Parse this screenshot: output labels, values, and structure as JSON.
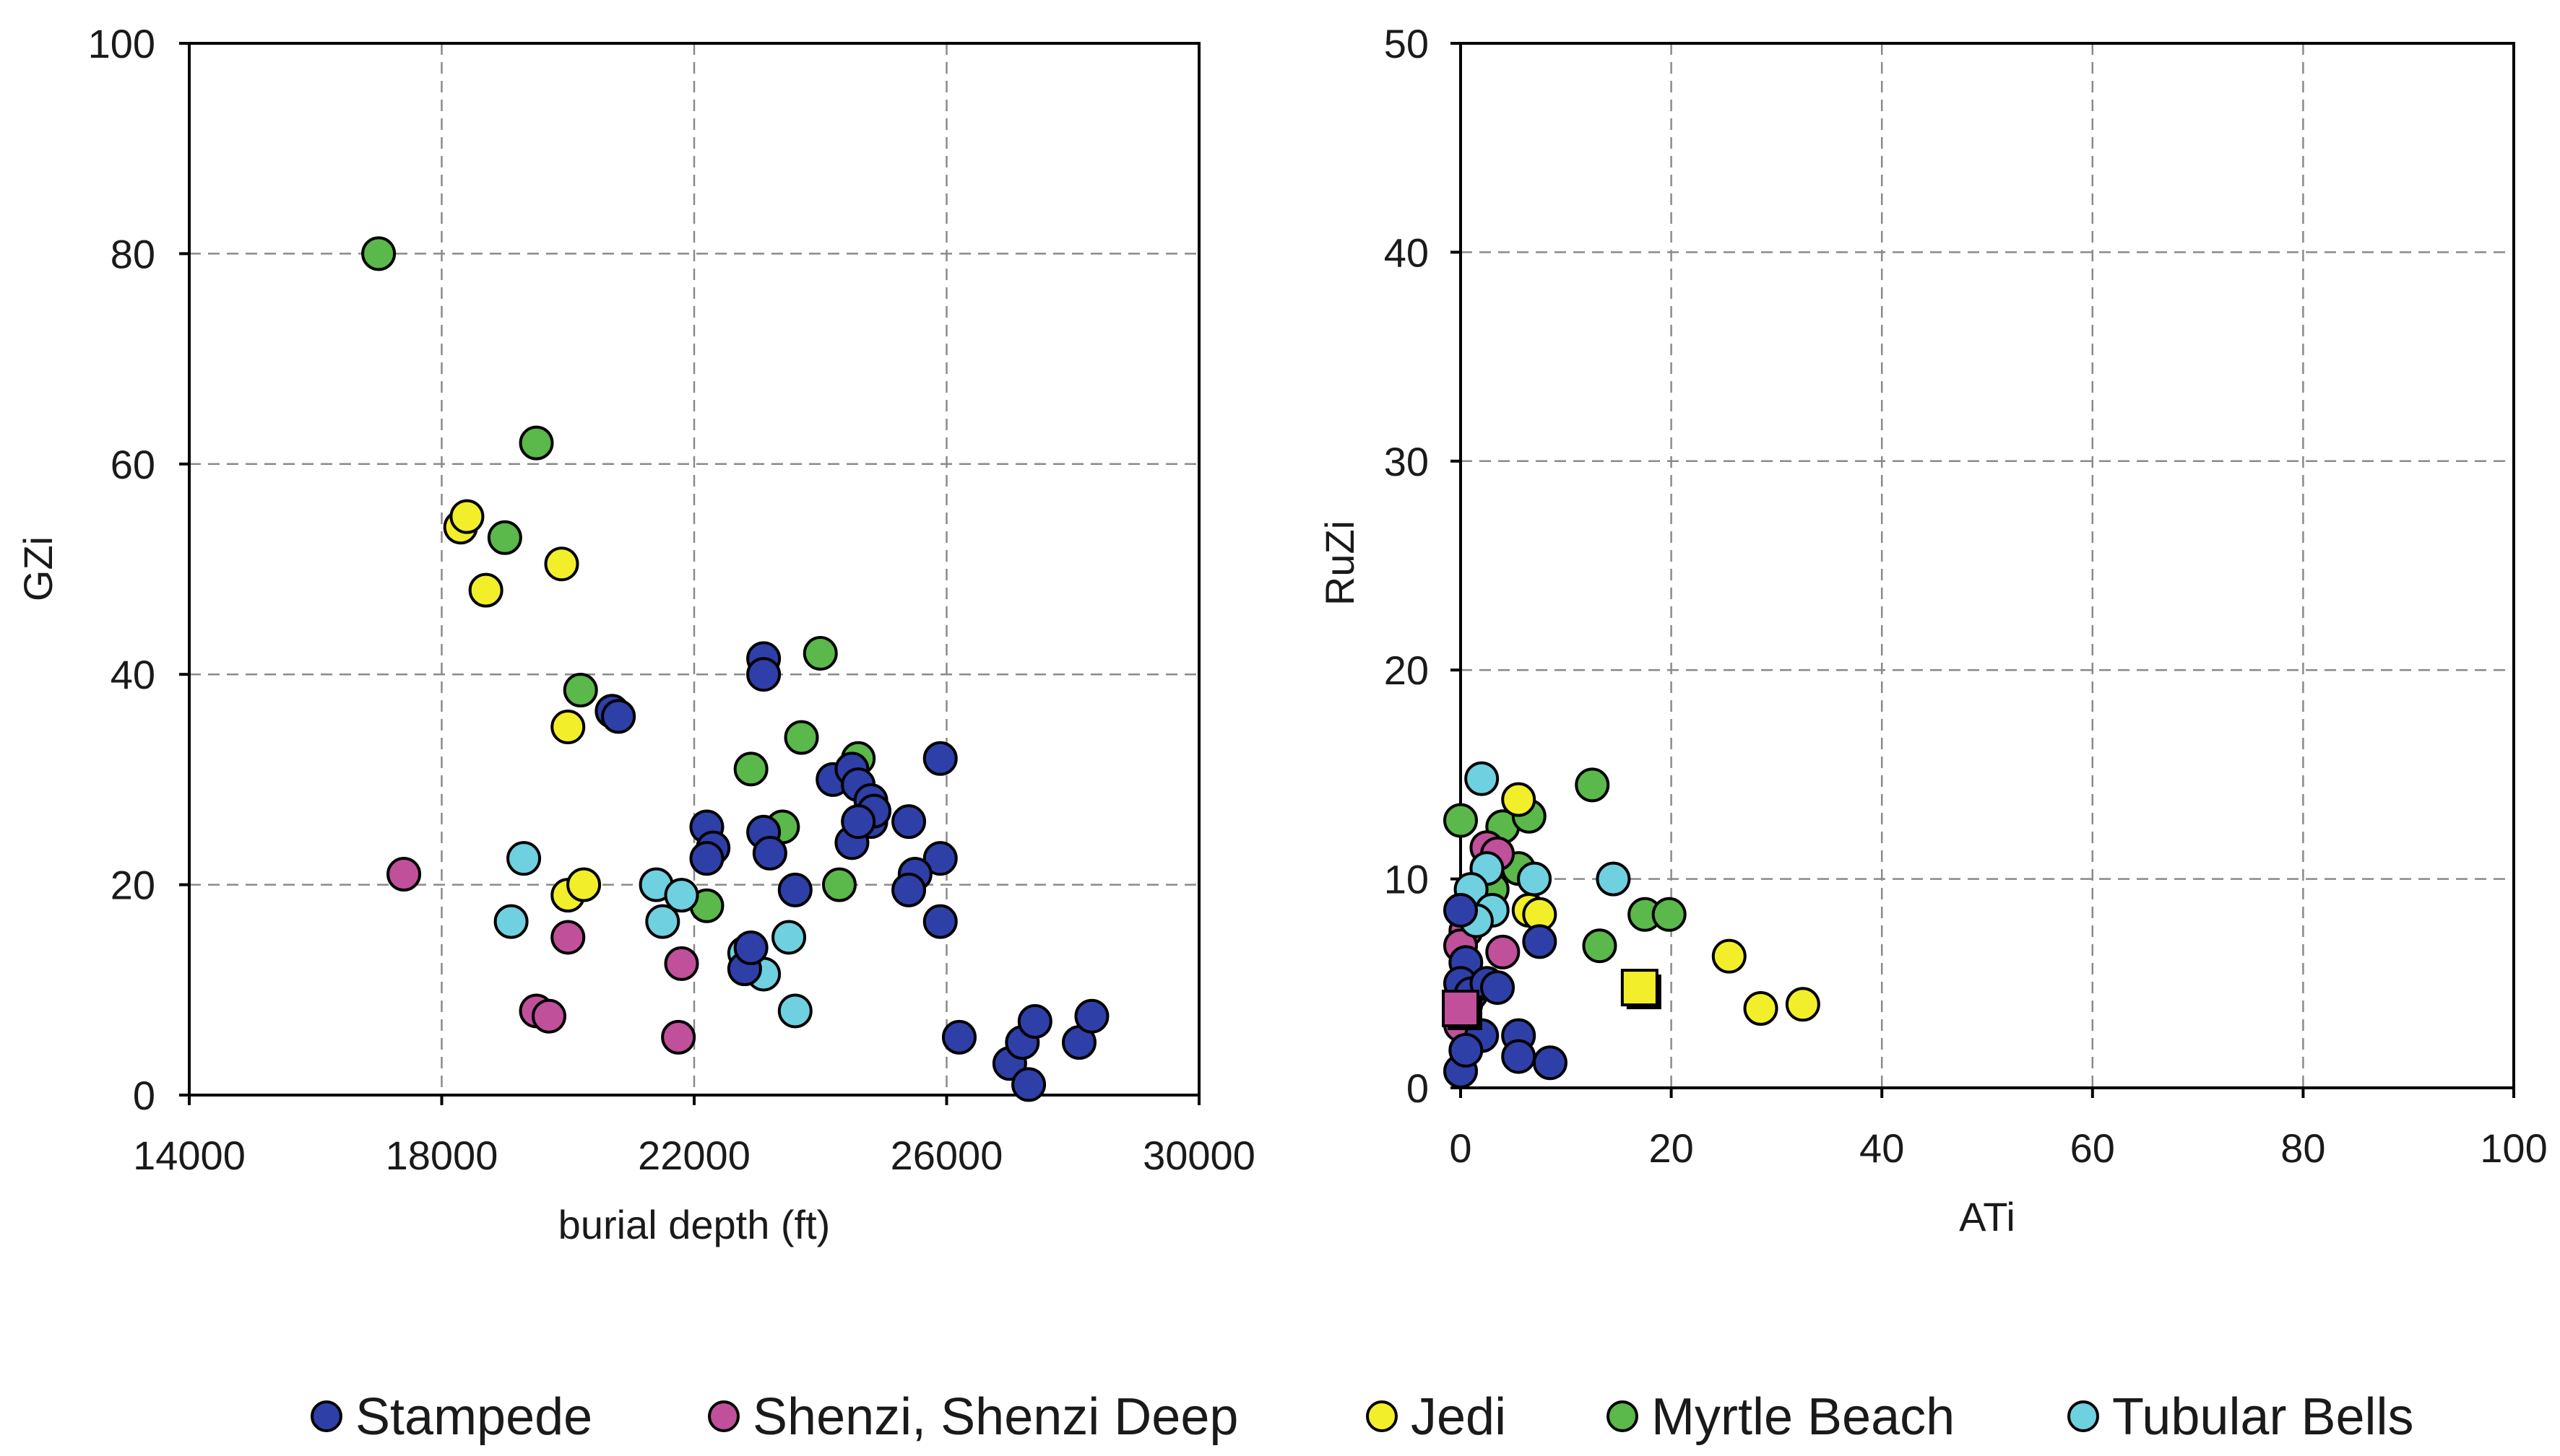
{
  "colors": {
    "Stampede": "#2f3fa8",
    "Shenzi, Shenzi Deep": "#c0509a",
    "Jedi": "#f2ef2a",
    "Myrtle Beach": "#5bb84a",
    "Tubular Bells": "#6fd0e0"
  },
  "legend": {
    "items": [
      "Stampede",
      "Shenzi, Shenzi Deep",
      "Jedi",
      "Myrtle Beach",
      "Tubular Bells"
    ]
  },
  "chart_data": [
    {
      "type": "scatter",
      "title": "",
      "xlabel": "burial depth (ft)",
      "ylabel": "GZi",
      "xlim": [
        14000,
        30000
      ],
      "ylim": [
        0,
        100
      ],
      "xticks": [
        14000,
        18000,
        22000,
        26000,
        30000
      ],
      "yticks": [
        0,
        20,
        40,
        60,
        80,
        100
      ],
      "grid": true,
      "series": [
        {
          "name": "Myrtle Beach",
          "points": [
            [
              17000,
              80
            ],
            [
              19500,
              62
            ],
            [
              19000,
              53
            ],
            [
              20200,
              38.5
            ],
            [
              24000,
              42
            ],
            [
              23700,
              34
            ],
            [
              22900,
              31
            ],
            [
              24600,
              32
            ],
            [
              23400,
              25.5
            ],
            [
              24300,
              20
            ],
            [
              22200,
              18
            ]
          ]
        },
        {
          "name": "Jedi",
          "points": [
            [
              18300,
              54
            ],
            [
              18400,
              55
            ],
            [
              18700,
              48
            ],
            [
              19900,
              50.5
            ],
            [
              20000,
              35
            ],
            [
              20000,
              19
            ],
            [
              20250,
              20
            ]
          ]
        },
        {
          "name": "Shenzi, Shenzi Deep",
          "points": [
            [
              17400,
              21
            ],
            [
              20000,
              15
            ],
            [
              19500,
              8
            ],
            [
              19700,
              7.5
            ],
            [
              21800,
              12.5
            ],
            [
              21750,
              5.5
            ]
          ]
        },
        {
          "name": "Tubular Bells",
          "points": [
            [
              19100,
              16.5
            ],
            [
              19300,
              22.5
            ],
            [
              21400,
              20
            ],
            [
              21500,
              16.5
            ],
            [
              21800,
              19
            ],
            [
              22800,
              13.5
            ],
            [
              23100,
              11.5
            ],
            [
              23500,
              15
            ],
            [
              23600,
              8
            ]
          ]
        },
        {
          "name": "Stampede",
          "points": [
            [
              20700,
              36.5
            ],
            [
              20800,
              36
            ],
            [
              23100,
              41.5
            ],
            [
              23100,
              40
            ],
            [
              22200,
              25.5
            ],
            [
              22300,
              23.5
            ],
            [
              22200,
              22.5
            ],
            [
              23100,
              25
            ],
            [
              23200,
              23
            ],
            [
              23600,
              19.5
            ],
            [
              22800,
              12
            ],
            [
              22900,
              14
            ],
            [
              24200,
              30
            ],
            [
              24500,
              31
            ],
            [
              24600,
              29.5
            ],
            [
              24800,
              28
            ],
            [
              24800,
              26
            ],
            [
              24850,
              27
            ],
            [
              24500,
              24
            ],
            [
              24600,
              26
            ],
            [
              25900,
              32
            ],
            [
              25400,
              26
            ],
            [
              25900,
              22.5
            ],
            [
              25500,
              21
            ],
            [
              25400,
              19.5
            ],
            [
              25900,
              16.5
            ],
            [
              26200,
              5.5
            ],
            [
              27000,
              3
            ],
            [
              27200,
              5
            ],
            [
              27400,
              7
            ],
            [
              27300,
              1
            ],
            [
              28100,
              5
            ],
            [
              28300,
              7.5
            ]
          ]
        }
      ]
    },
    {
      "type": "scatter",
      "title": "",
      "xlabel": "ATi",
      "ylabel": "RuZi",
      "xlim": [
        0,
        100
      ],
      "ylim": [
        0,
        50
      ],
      "xticks": [
        0,
        20,
        40,
        60,
        80,
        100
      ],
      "yticks": [
        0,
        10,
        20,
        30,
        40,
        50
      ],
      "grid": true,
      "series": [
        {
          "name": "Myrtle Beach",
          "points": [
            [
              0,
              12.8
            ],
            [
              4,
              12.5
            ],
            [
              6.5,
              13
            ],
            [
              12.5,
              14.5
            ],
            [
              5.5,
              10.5
            ],
            [
              3,
              9.5
            ],
            [
              17.5,
              8.3
            ],
            [
              19.8,
              8.3
            ],
            [
              13.2,
              6.8
            ]
          ]
        },
        {
          "name": "Jedi",
          "points": [
            [
              5.5,
              13.8
            ],
            [
              6.5,
              8.5
            ],
            [
              7.5,
              8.3
            ],
            [
              25.5,
              6.3
            ],
            [
              28.5,
              3.8
            ],
            [
              32.5,
              4
            ]
          ]
        },
        {
          "name": "Shenzi, Shenzi Deep",
          "points": [
            [
              2.5,
              11.5
            ],
            [
              3.5,
              11.2
            ],
            [
              0.5,
              7.5
            ],
            [
              0,
              6.8
            ],
            [
              0.5,
              4
            ],
            [
              0,
              3
            ],
            [
              4,
              6.5
            ]
          ]
        },
        {
          "name": "Tubular Bells",
          "points": [
            [
              2,
              14.8
            ],
            [
              2.5,
              10.5
            ],
            [
              14.5,
              10
            ],
            [
              7,
              10
            ],
            [
              1,
              9.5
            ],
            [
              3,
              8.5
            ],
            [
              1.5,
              8
            ],
            [
              1,
              5
            ]
          ]
        },
        {
          "name": "Stampede",
          "points": [
            [
              0,
              8.5
            ],
            [
              0.5,
              6
            ],
            [
              0,
              5
            ],
            [
              1,
              4.5
            ],
            [
              2.5,
              5
            ],
            [
              3.5,
              4.8
            ],
            [
              7.5,
              7
            ],
            [
              2,
              2.5
            ],
            [
              5.5,
              2.5
            ],
            [
              5.5,
              1.5
            ],
            [
              8.5,
              1.2
            ],
            [
              0,
              0.8
            ],
            [
              0.5,
              1.8
            ]
          ]
        }
      ],
      "square_markers": [
        {
          "series": "Jedi",
          "x": 17,
          "y": 4.8
        },
        {
          "series": "Shenzi, Shenzi Deep",
          "x": 0,
          "y": 3.8
        }
      ]
    }
  ]
}
